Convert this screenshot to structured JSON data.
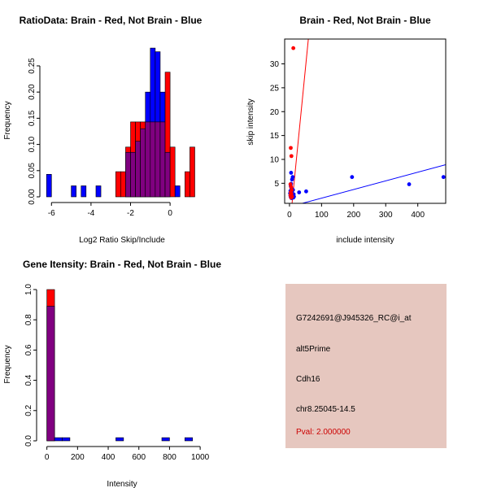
{
  "colors": {
    "red": "#ff0000",
    "blue": "#0000ff",
    "overlap": "#800080",
    "panel": "#e6c7bf",
    "pval": "#cc0000"
  },
  "chart_data": [
    {
      "id": "ratio",
      "type": "bar",
      "title": "RatioData: Brain - Red, Not Brain - Blue",
      "xlabel": "Log2 Ratio Skip/Include",
      "ylabel": "Frequency",
      "xlim": [
        -6.3,
        1.6
      ],
      "ylim": [
        0,
        0.295
      ],
      "xticks": [
        -6,
        -4,
        -2,
        0
      ],
      "yticks": [
        0.0,
        0.05,
        0.1,
        0.15,
        0.2,
        0.25
      ],
      "ytick_labels": [
        "0.00",
        "0.05",
        "0.10",
        "0.15",
        "0.20",
        "0.25"
      ],
      "bin_width": 0.25,
      "series": [
        {
          "name": "Brain",
          "color": "red",
          "bins": [
            [
              -2.75,
              0.048
            ],
            [
              -2.5,
              0.048
            ],
            [
              -2.25,
              0.095
            ],
            [
              -2.0,
              0.143
            ],
            [
              -1.75,
              0.143
            ],
            [
              -1.5,
              0.143
            ],
            [
              -1.25,
              0.143
            ],
            [
              -1.0,
              0.143
            ],
            [
              -0.75,
              0.143
            ],
            [
              -0.5,
              0.143
            ],
            [
              -0.25,
              0.238
            ],
            [
              0.0,
              0.095
            ],
            [
              0.25,
              0.0
            ],
            [
              0.5,
              0.0
            ],
            [
              0.75,
              0.048
            ],
            [
              1.0,
              0.095
            ]
          ]
        },
        {
          "name": "Not Brain",
          "color": "blue",
          "bins": [
            [
              -6.25,
              0.043
            ],
            [
              -5.0,
              0.021
            ],
            [
              -4.5,
              0.021
            ],
            [
              -3.75,
              0.021
            ],
            [
              -2.25,
              0.085
            ],
            [
              -2.0,
              0.085
            ],
            [
              -1.75,
              0.106
            ],
            [
              -1.5,
              0.13
            ],
            [
              -1.25,
              0.2
            ],
            [
              -1.0,
              0.284
            ],
            [
              -0.75,
              0.277
            ],
            [
              -0.5,
              0.2
            ],
            [
              -0.25,
              0.085
            ],
            [
              0.25,
              0.021
            ]
          ]
        }
      ]
    },
    {
      "id": "scatter",
      "type": "scatter",
      "title": "Brain - Red, Not Brain - Blue",
      "xlabel": "include intensity",
      "ylabel": "skip intensity",
      "xlim": [
        -15,
        487
      ],
      "ylim": [
        0.8,
        35.2
      ],
      "xticks": [
        0,
        100,
        200,
        300,
        400
      ],
      "yticks": [
        5,
        10,
        15,
        20,
        25,
        30
      ],
      "series": [
        {
          "name": "Brain",
          "color": "red",
          "points": [
            [
              12,
              33.3
            ],
            [
              4,
              12.4
            ],
            [
              6,
              10.7
            ],
            [
              3,
              4.8
            ],
            [
              5,
              4.2
            ],
            [
              7,
              3.6
            ],
            [
              4,
              3.1
            ],
            [
              6,
              2.8
            ],
            [
              3,
              2.5
            ],
            [
              8,
              2.2
            ],
            [
              5,
              2.0
            ]
          ]
        },
        {
          "name": "Not Brain",
          "color": "blue",
          "points": [
            [
              5,
              7.2
            ],
            [
              10,
              6.3
            ],
            [
              8,
              5.8
            ],
            [
              195,
              6.3
            ],
            [
              480,
              6.3
            ],
            [
              373,
              4.8
            ],
            [
              30,
              3.1
            ],
            [
              52,
              3.3
            ],
            [
              4,
              4.4
            ],
            [
              6,
              3.9
            ],
            [
              3,
              3.4
            ],
            [
              8,
              3.0
            ],
            [
              5,
              2.7
            ],
            [
              10,
              2.5
            ],
            [
              7,
              2.3
            ],
            [
              4,
              2.1
            ],
            [
              12,
              2.0
            ],
            [
              6,
              1.9
            ],
            [
              9,
              2.6
            ],
            [
              3,
              2.4
            ],
            [
              11,
              3.6
            ],
            [
              2,
              2.9
            ],
            [
              14,
              2.2
            ],
            [
              5,
              4.9
            ],
            [
              13,
              2.7
            ]
          ]
        }
      ],
      "fit_lines": [
        {
          "name": "Brain fit",
          "color": "red",
          "from": [
            8,
            0.8
          ],
          "to": [
            60,
            36
          ]
        },
        {
          "name": "Not Brain fit",
          "color": "blue",
          "from": [
            40,
            0.8
          ],
          "to": [
            487,
            8.9
          ]
        }
      ]
    },
    {
      "id": "intensity",
      "type": "bar",
      "title": "Gene Itensity: Brain - Red, Not Brain - Blue",
      "xlabel": "Intensity",
      "ylabel": "Frequency",
      "xlim": [
        -30,
        1010
      ],
      "ylim": [
        0,
        1.0
      ],
      "xticks": [
        0,
        200,
        400,
        600,
        800,
        1000
      ],
      "yticks": [
        0.0,
        0.2,
        0.4,
        0.6,
        0.8,
        1.0
      ],
      "ytick_labels": [
        "0.0",
        "0.2",
        "0.4",
        "0.6",
        "0.8",
        "1.0"
      ],
      "bin_width": 50,
      "series": [
        {
          "name": "Brain",
          "color": "red",
          "bins": [
            [
              0,
              1.0
            ]
          ]
        },
        {
          "name": "Not Brain",
          "color": "blue",
          "bins": [
            [
              0,
              0.89
            ],
            [
              50,
              0.021
            ],
            [
              100,
              0.021
            ],
            [
              450,
              0.021
            ],
            [
              750,
              0.021
            ],
            [
              900,
              0.021
            ]
          ]
        }
      ]
    }
  ],
  "info": {
    "probe": "G7242691@J945326_RC@i_at",
    "type": "alt5Prime",
    "gene": "Cdh16",
    "location": "chr8.25045-14.5",
    "pval": "Pval: 2.000000"
  }
}
